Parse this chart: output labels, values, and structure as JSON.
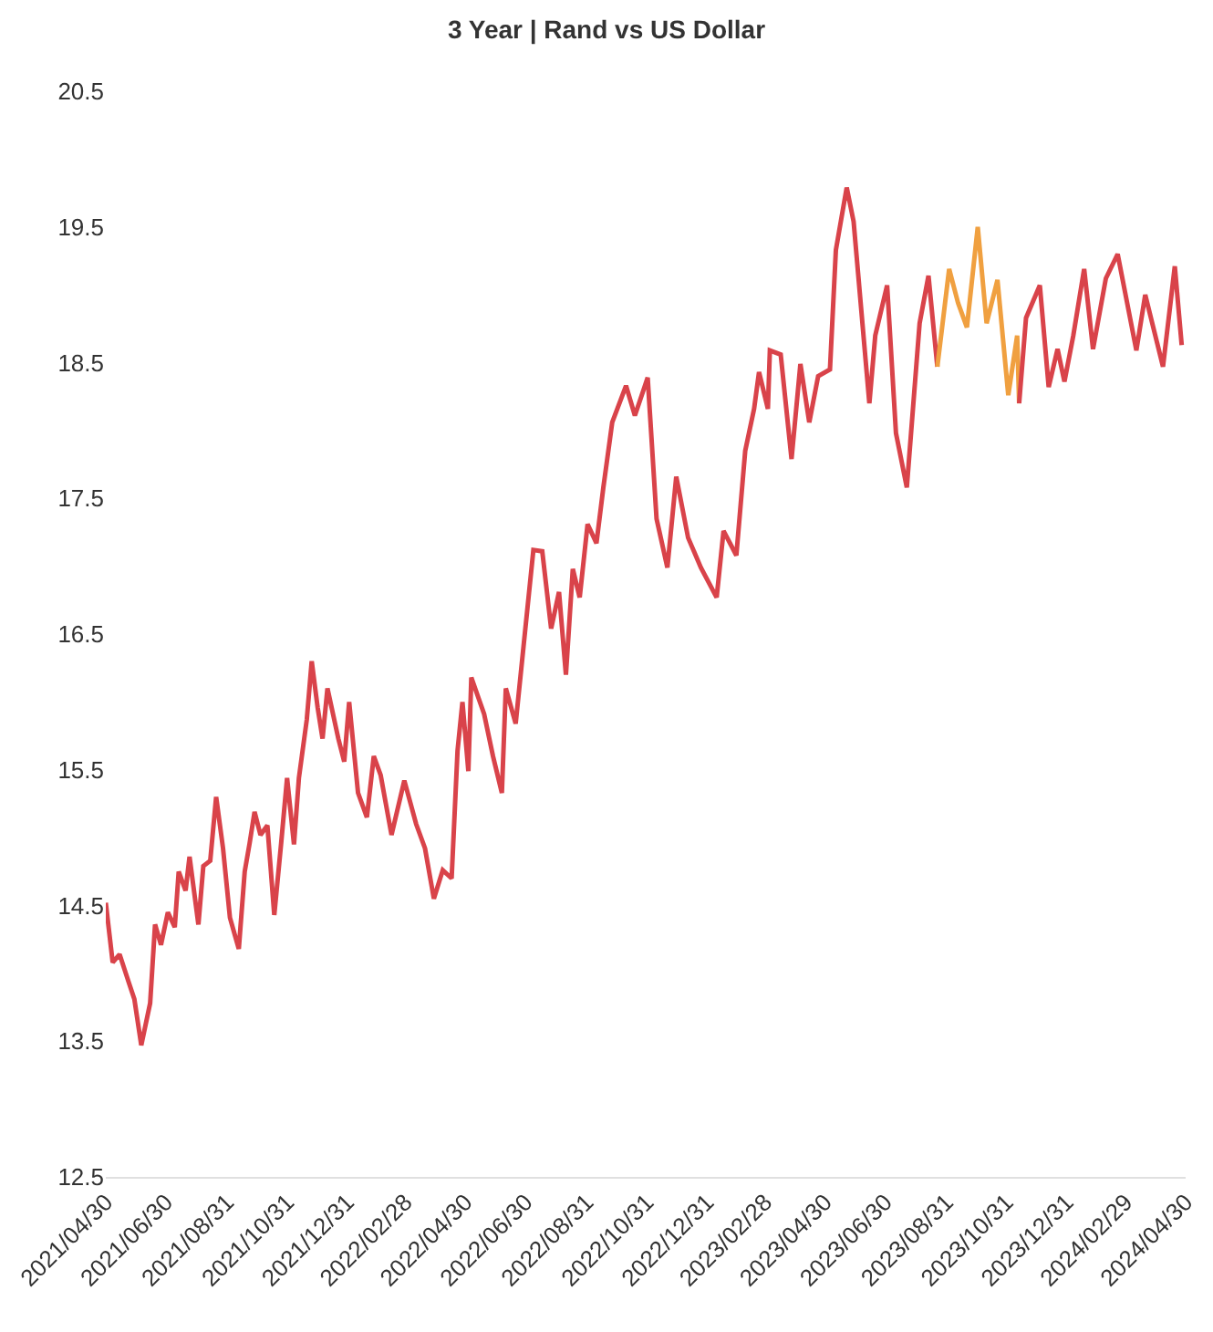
{
  "chart_data": {
    "type": "line",
    "title": "3 Year | Rand vs US Dollar",
    "xlim": [
      "2021-04-30",
      "2024-04-30"
    ],
    "xticks": [
      {
        "value": "2021-04-30",
        "label": "2021/04/30"
      },
      {
        "value": "2021-06-30",
        "label": "2021/06/30"
      },
      {
        "value": "2021-08-31",
        "label": "2021/08/31"
      },
      {
        "value": "2021-10-31",
        "label": "2021/10/31"
      },
      {
        "value": "2021-12-31",
        "label": "2021/12/31"
      },
      {
        "value": "2022-02-28",
        "label": "2022/02/28"
      },
      {
        "value": "2022-04-30",
        "label": "2022/04/30"
      },
      {
        "value": "2022-06-30",
        "label": "2022/06/30"
      },
      {
        "value": "2022-08-31",
        "label": "2022/08/31"
      },
      {
        "value": "2022-10-31",
        "label": "2022/10/31"
      },
      {
        "value": "2022-12-31",
        "label": "2022/12/31"
      },
      {
        "value": "2023-02-28",
        "label": "2023/02/28"
      },
      {
        "value": "2023-04-30",
        "label": "2023/04/30"
      },
      {
        "value": "2023-06-30",
        "label": "2023/06/30"
      },
      {
        "value": "2023-08-31",
        "label": "2023/08/31"
      },
      {
        "value": "2023-10-31",
        "label": "2023/10/31"
      },
      {
        "value": "2023-12-31",
        "label": "2023/12/31"
      },
      {
        "value": "2024-02-29",
        "label": "2024/02/29"
      },
      {
        "value": "2024-04-30",
        "label": "2024/04/30"
      }
    ],
    "ylim": [
      12.5,
      20.5
    ],
    "yticks": [
      12.5,
      13.5,
      14.5,
      15.5,
      16.5,
      17.5,
      18.5,
      19.5,
      20.5
    ],
    "grid": false,
    "marker": "none",
    "line_style": "solid",
    "series": [
      {
        "color": "#d9434a",
        "x": [
          "2021-04-30",
          "2021-05-07",
          "2021-05-14",
          "2021-05-23",
          "2021-05-29",
          "2021-06-05",
          "2021-06-14",
          "2021-06-19",
          "2021-06-25",
          "2021-07-02",
          "2021-07-09",
          "2021-07-13",
          "2021-07-20",
          "2021-07-24",
          "2021-08-02",
          "2021-08-07",
          "2021-08-14",
          "2021-08-20",
          "2021-08-27",
          "2021-09-03",
          "2021-09-12",
          "2021-09-18",
          "2021-09-23",
          "2021-09-28",
          "2021-10-04",
          "2021-10-11",
          "2021-10-18",
          "2021-10-25",
          "2021-10-31",
          "2021-11-07",
          "2021-11-12",
          "2021-11-20",
          "2021-11-25",
          "2021-12-01",
          "2021-12-06",
          "2021-12-11",
          "2021-12-22",
          "2021-12-28",
          "2022-01-02",
          "2022-01-11",
          "2022-01-20",
          "2022-01-27",
          "2022-02-03",
          "2022-02-14",
          "2022-02-27",
          "2022-03-11",
          "2022-03-20",
          "2022-03-29",
          "2022-04-07",
          "2022-04-16",
          "2022-04-22",
          "2022-04-27",
          "2022-05-03",
          "2022-05-06",
          "2022-05-19",
          "2022-05-28",
          "2022-06-06",
          "2022-06-10",
          "2022-06-20",
          "2022-06-28",
          "2022-07-08",
          "2022-07-17",
          "2022-07-26",
          "2022-08-03",
          "2022-08-10",
          "2022-08-17",
          "2022-08-24",
          "2022-09-01",
          "2022-09-10",
          "2022-09-17",
          "2022-09-26",
          "2022-10-10",
          "2022-10-19",
          "2022-11-01",
          "2022-11-10",
          "2022-11-21",
          "2022-11-30",
          "2022-12-12",
          "2022-12-25",
          "2023-01-10",
          "2023-01-17",
          "2023-01-30",
          "2023-02-08",
          "2023-02-17",
          "2023-02-22",
          "2023-03-03",
          "2023-03-05",
          "2023-03-16",
          "2023-03-27",
          "2023-04-05",
          "2023-04-14",
          "2023-04-23",
          "2023-05-05",
          "2023-05-11",
          "2023-05-22",
          "2023-05-29",
          "2023-06-14",
          "2023-06-20",
          "2023-07-02",
          "2023-07-11",
          "2023-07-22",
          "2023-08-04",
          "2023-08-13",
          "2023-08-22"
        ],
        "values": [
          14.52,
          14.08,
          14.14,
          13.94,
          13.81,
          13.47,
          13.78,
          14.36,
          14.21,
          14.45,
          14.34,
          14.75,
          14.61,
          14.86,
          14.36,
          14.79,
          14.83,
          15.3,
          14.92,
          14.41,
          14.18,
          14.75,
          14.96,
          15.19,
          15.02,
          15.09,
          14.43,
          14.96,
          15.44,
          14.95,
          15.44,
          15.87,
          16.3,
          15.96,
          15.73,
          16.1,
          15.73,
          15.56,
          16.0,
          15.33,
          15.15,
          15.6,
          15.46,
          15.02,
          15.42,
          15.1,
          14.92,
          14.55,
          14.76,
          14.7,
          15.64,
          16.0,
          15.49,
          16.18,
          15.91,
          15.6,
          15.33,
          16.1,
          15.84,
          16.41,
          17.12,
          17.11,
          16.54,
          16.81,
          16.2,
          16.98,
          16.77,
          17.31,
          17.17,
          17.58,
          18.06,
          18.33,
          18.11,
          18.39,
          17.35,
          16.99,
          17.66,
          17.21,
          16.99,
          16.77,
          17.26,
          17.08,
          17.85,
          18.16,
          18.43,
          18.16,
          18.59,
          18.56,
          17.79,
          18.49,
          18.06,
          18.4,
          18.45,
          19.33,
          19.79,
          19.54,
          18.2,
          18.7,
          19.07,
          17.98,
          17.58,
          18.79,
          19.14,
          18.47
        ]
      },
      {
        "color": "#f0a040",
        "x": [
          "2023-08-22",
          "2023-09-03",
          "2023-09-12",
          "2023-09-21",
          "2023-10-02",
          "2023-10-11",
          "2023-10-22",
          "2023-11-02",
          "2023-11-11",
          "2023-11-13"
        ],
        "values": [
          18.47,
          19.19,
          18.94,
          18.76,
          19.5,
          18.79,
          19.11,
          18.26,
          18.7,
          18.2
        ]
      },
      {
        "color": "#d9434a",
        "x": [
          "2023-11-13",
          "2023-11-20",
          "2023-12-04",
          "2023-12-13",
          "2023-12-22",
          "2023-12-29",
          "2024-01-07",
          "2024-01-18",
          "2024-01-27",
          "2024-02-09",
          "2024-02-21",
          "2024-03-11",
          "2024-03-20",
          "2024-04-07",
          "2024-04-19",
          "2024-04-26"
        ],
        "values": [
          18.2,
          18.83,
          19.07,
          18.32,
          18.6,
          18.36,
          18.7,
          19.19,
          18.6,
          19.12,
          19.3,
          18.59,
          19.0,
          18.47,
          19.21,
          18.63
        ]
      }
    ]
  }
}
